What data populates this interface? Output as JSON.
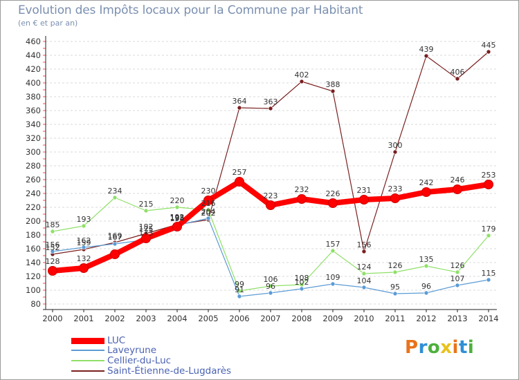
{
  "header": {
    "title": "Evolution des Impôts locaux pour la Commune par Habitant",
    "subtitle": "(en € et par an)"
  },
  "logo": {
    "text": "Proxiti",
    "colors": [
      "#e8731b",
      "#2f8fd6",
      "#4db03c",
      "#e8c21b"
    ]
  },
  "chart_data": {
    "type": "line",
    "x": [
      2000,
      2001,
      2002,
      2003,
      2004,
      2005,
      2006,
      2007,
      2008,
      2009,
      2010,
      2011,
      2012,
      2013,
      2014
    ],
    "xlabel": "",
    "ylabel": "",
    "ylim": [
      80,
      460
    ],
    "yticks": [
      80,
      100,
      120,
      140,
      160,
      180,
      200,
      220,
      240,
      260,
      280,
      300,
      320,
      340,
      360,
      380,
      400,
      420,
      440,
      460
    ],
    "grid": "horizontal dashed",
    "legend": "bottom-left",
    "series": [
      {
        "name": "LUC",
        "color": "#ff0000",
        "values": [
          128,
          132,
          152,
          175,
          192,
          230,
          257,
          223,
          232,
          226,
          231,
          233,
          242,
          246,
          253
        ]
      },
      {
        "name": "Laveyrune",
        "color": "#5b9bd5",
        "values": [
          156,
          162,
          167,
          173,
          194,
          204,
          91,
          96,
          102,
          109,
          104,
          95,
          96,
          107,
          115
        ]
      },
      {
        "name": "Cellier-du-Luc",
        "color": "#8fe068",
        "values": [
          185,
          193,
          234,
          215,
          220,
          216,
          99,
          106,
          108,
          157,
          124,
          126,
          135,
          126,
          179
        ]
      },
      {
        "name": "Saint-Étienne-de-Lugdarès",
        "color": "#7a1f1f",
        "values": [
          152,
          159,
          169,
          182,
          195,
          202,
          364,
          363,
          402,
          388,
          156,
          300,
          439,
          406,
          445
        ]
      }
    ],
    "data_labels": [
      [
        128,
        132,
        null,
        175,
        192,
        230,
        257,
        223,
        232,
        226,
        231,
        233,
        242,
        246,
        253
      ],
      [
        156,
        162,
        167,
        173,
        194,
        204,
        91,
        96,
        102,
        109,
        104,
        95,
        96,
        107,
        115
      ],
      [
        185,
        193,
        234,
        215,
        220,
        216,
        99,
        106,
        108,
        157,
        124,
        126,
        135,
        126,
        179
      ],
      [
        152,
        159,
        169,
        182,
        195,
        202,
        364,
        363,
        402,
        388,
        156,
        300,
        439,
        406,
        445
      ]
    ]
  }
}
